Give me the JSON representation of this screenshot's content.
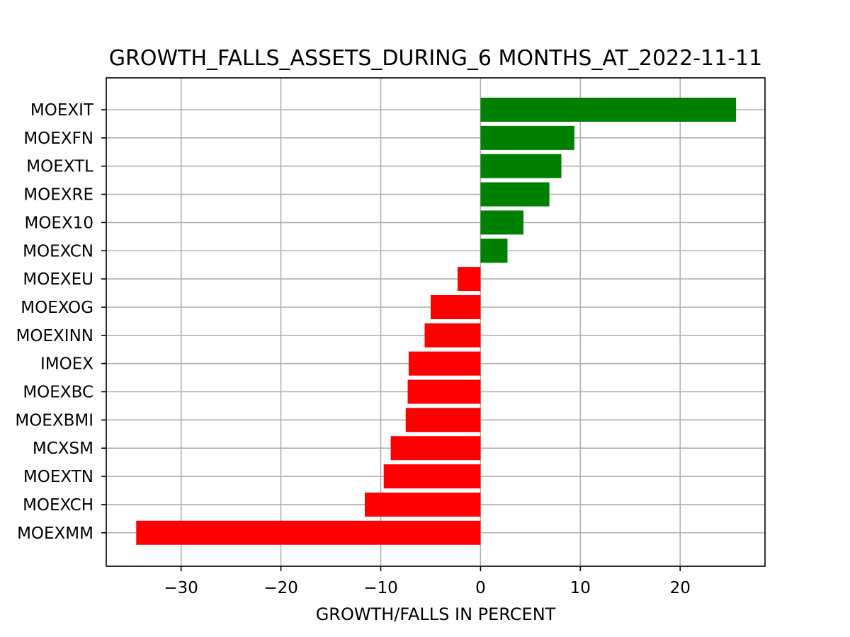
{
  "chart_data": {
    "type": "bar",
    "orientation": "horizontal",
    "title": "GROWTH_FALLS_ASSETS_DURING_6 MONTHS_AT_2022-11-11",
    "xlabel": "GROWTH/FALLS IN PERCENT",
    "ylabel": "",
    "xlim": [
      -37.5,
      28.5
    ],
    "xticks": [
      -30,
      -20,
      -10,
      0,
      10,
      20
    ],
    "xtick_labels": [
      "−30",
      "−20",
      "−10",
      "0",
      "10",
      "20"
    ],
    "grid": true,
    "colors": {
      "positive": "#008000",
      "negative": "#ff0000"
    },
    "categories": [
      "MOEXIT",
      "MOEXFN",
      "MOEXTL",
      "MOEXRE",
      "MOEX10",
      "MOEXCN",
      "MOEXEU",
      "MOEXOG",
      "MOEXINN",
      "IMOEX",
      "MOEXBC",
      "MOEXBMI",
      "MCXSM",
      "MOEXTN",
      "MOEXCH",
      "MOEXMM"
    ],
    "values": [
      25.6,
      9.4,
      8.1,
      6.9,
      4.3,
      2.7,
      -2.3,
      -5.0,
      -5.6,
      -7.2,
      -7.3,
      -7.5,
      -9.0,
      -9.7,
      -11.6,
      -34.5
    ]
  }
}
